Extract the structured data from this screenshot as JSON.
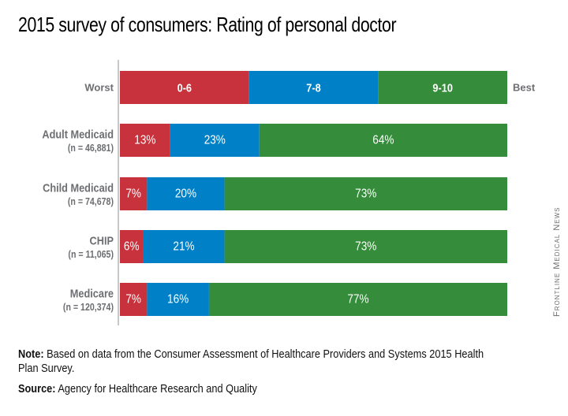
{
  "title": "2015 survey of consumers: Rating of personal doctor",
  "credit": "Frontline Medical News",
  "note_label": "Note:",
  "note_text": " Based on data from the Consumer Assessment of Healthcare Providers and Systems 2015 Health Plan Survey.",
  "source_label": "Source:",
  "source_text": " Agency for Healthcare Research and Quality",
  "colors": {
    "low": "#c8323c",
    "mid": "#0080c6",
    "high": "#358c3a",
    "label": "#6d6e71",
    "axis": "#c8c8c8"
  },
  "chart_data": {
    "type": "bar",
    "orientation": "horizontal",
    "stacked": true,
    "title": "2015 survey of consumers: Rating of personal doctor",
    "legend": {
      "left_label": "Worst",
      "right_label": "Best",
      "entries": [
        "0-6",
        "7-8",
        "9-10"
      ]
    },
    "categories": [
      {
        "name": "Adult Medicaid",
        "n": "(n = 46,881)"
      },
      {
        "name": "Child Medicaid",
        "n": "(n = 74,678)"
      },
      {
        "name": "CHIP",
        "n": "(n = 11,065)"
      },
      {
        "name": "Medicare",
        "n": "(n = 120,374)"
      }
    ],
    "series": [
      {
        "name": "0-6",
        "values": [
          13,
          7,
          6,
          7
        ]
      },
      {
        "name": "7-8",
        "values": [
          23,
          20,
          21,
          16
        ]
      },
      {
        "name": "9-10",
        "values": [
          64,
          73,
          73,
          77
        ]
      }
    ],
    "unit": "%",
    "xlim": [
      0,
      100
    ],
    "grid": false
  }
}
